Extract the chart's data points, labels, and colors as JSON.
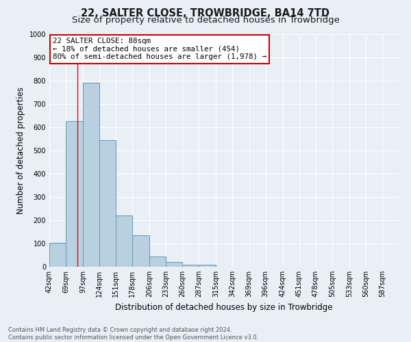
{
  "title": "22, SALTER CLOSE, TROWBRIDGE, BA14 7TD",
  "subtitle": "Size of property relative to detached houses in Trowbridge",
  "xlabel": "Distribution of detached houses by size in Trowbridge",
  "ylabel": "Number of detached properties",
  "bin_labels": [
    "42sqm",
    "69sqm",
    "97sqm",
    "124sqm",
    "151sqm",
    "178sqm",
    "206sqm",
    "233sqm",
    "260sqm",
    "287sqm",
    "315sqm",
    "342sqm",
    "369sqm",
    "396sqm",
    "424sqm",
    "451sqm",
    "478sqm",
    "505sqm",
    "533sqm",
    "560sqm",
    "587sqm"
  ],
  "bin_edges": [
    42,
    69,
    97,
    124,
    151,
    178,
    206,
    233,
    260,
    287,
    315,
    342,
    369,
    396,
    424,
    451,
    478,
    505,
    533,
    560,
    587
  ],
  "bar_heights": [
    103,
    625,
    790,
    545,
    220,
    135,
    45,
    20,
    10,
    8,
    0,
    0,
    0,
    0,
    0,
    0,
    0,
    0,
    0,
    0
  ],
  "bar_color": "#b8d0e0",
  "bar_edge_color": "#6699bb",
  "bar_edge_width": 0.7,
  "red_line_x": 88,
  "ylim": [
    0,
    1000
  ],
  "yticks": [
    0,
    100,
    200,
    300,
    400,
    500,
    600,
    700,
    800,
    900,
    1000
  ],
  "annotation_line1": "22 SALTER CLOSE: 88sqm",
  "annotation_line2": "← 18% of detached houses are smaller (454)",
  "annotation_line3": "80% of semi-detached houses are larger (1,978) →",
  "annotation_box_facecolor": "#ffffff",
  "annotation_box_edgecolor": "#cc0000",
  "footer_line1": "Contains HM Land Registry data © Crown copyright and database right 2024.",
  "footer_line2": "Contains public sector information licensed under the Open Government Licence v3.0.",
  "background_color": "#e8f0f5",
  "plot_background_color": "#e8f0f5",
  "grid_color": "#ffffff",
  "title_fontsize": 10.5,
  "subtitle_fontsize": 9.5,
  "axis_label_fontsize": 8.5,
  "tick_fontsize": 7.0,
  "annotation_fontsize": 7.8,
  "footer_fontsize": 6.0
}
